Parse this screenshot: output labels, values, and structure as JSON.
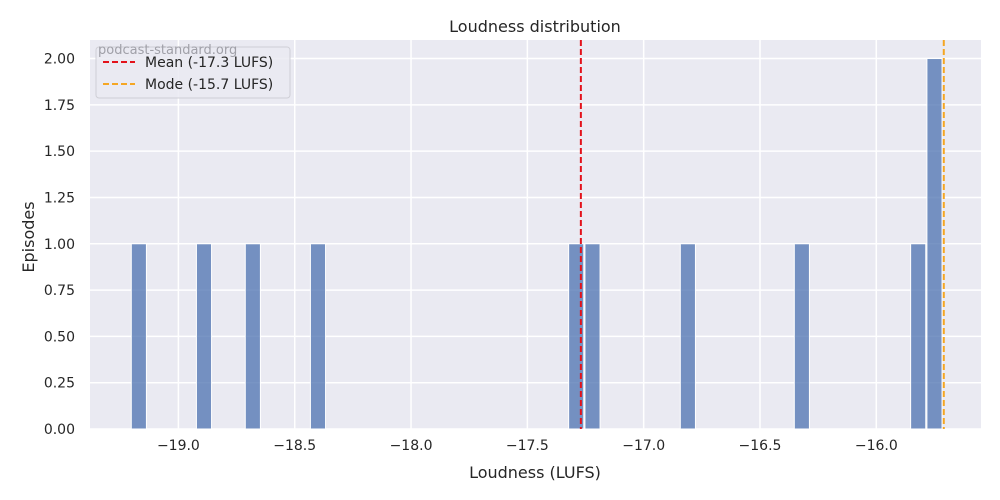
{
  "chart_data": {
    "type": "bar",
    "title": "Loudness distribution",
    "xlabel": "Loudness (LUFS)",
    "ylabel": "Episodes",
    "xlim": [
      -19.38,
      -15.55
    ],
    "ylim": [
      0,
      2.1
    ],
    "bin_width": 0.065,
    "xticks": [
      -19.0,
      -18.5,
      -18.0,
      -17.5,
      -17.0,
      -16.5,
      -16.0
    ],
    "xtick_labels": [
      "−19.0",
      "−18.5",
      "−18.0",
      "−17.5",
      "−17.0",
      "−16.5",
      "−16.0"
    ],
    "yticks": [
      0.0,
      0.25,
      0.5,
      0.75,
      1.0,
      1.25,
      1.5,
      1.75,
      2.0
    ],
    "ytick_labels": [
      "0.00",
      "0.25",
      "0.50",
      "0.75",
      "1.00",
      "1.25",
      "1.50",
      "1.75",
      "2.00"
    ],
    "bins": [
      {
        "center": -19.17,
        "count": 1
      },
      {
        "center": -18.89,
        "count": 1
      },
      {
        "center": -18.68,
        "count": 1
      },
      {
        "center": -18.4,
        "count": 1
      },
      {
        "center": -17.29,
        "count": 1
      },
      {
        "center": -17.22,
        "count": 1
      },
      {
        "center": -16.81,
        "count": 1
      },
      {
        "center": -16.32,
        "count": 1
      },
      {
        "center": -15.82,
        "count": 1
      },
      {
        "center": -15.75,
        "count": 2
      }
    ],
    "reference_lines": [
      {
        "label": "Mean (-17.3 LUFS)",
        "x": -17.27,
        "color": "#e3121b"
      },
      {
        "label": "Mode (-15.7 LUFS)",
        "x": -15.71,
        "color": "#f5a623"
      }
    ],
    "bar_color": "#4c72b0",
    "legend_position": "upper-left",
    "grid": true,
    "watermark": "podcast-standard.org"
  }
}
